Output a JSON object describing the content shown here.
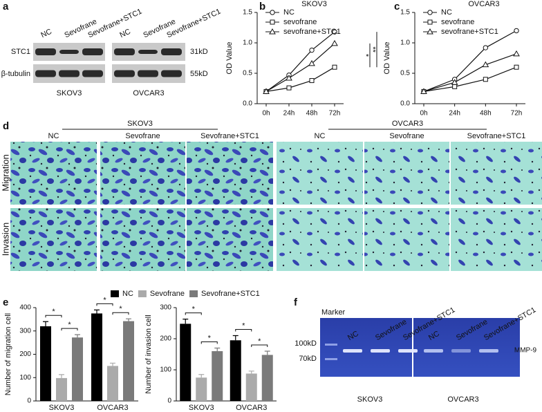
{
  "panel_labels": [
    "a",
    "b",
    "c",
    "d",
    "e",
    "f"
  ],
  "blot": {
    "lanes": [
      "NC",
      "Sevofrane",
      "Sevofrane+STC1"
    ],
    "rows": [
      "STC1",
      "β-tubulin"
    ],
    "sizes": [
      "31kD",
      "55kD"
    ],
    "cells": [
      "SKOV3",
      "OVCAR3"
    ]
  },
  "micrographs": {
    "groups": [
      "SKOV3",
      "OVCAR3"
    ],
    "columns": [
      "NC",
      "Sevofrane",
      "Sevofrane+STC1"
    ],
    "rows": [
      "Migration",
      "Invasion"
    ]
  },
  "gel": {
    "marker": "Marker",
    "lanes": [
      "NC",
      "Sevofrane",
      "Sevofrane+STC1"
    ],
    "sizes": [
      "100kD",
      "70kD"
    ],
    "band": "MMP-9",
    "cells": [
      "SKOV3",
      "OVCAR3"
    ]
  },
  "chart_data": [
    {
      "type": "line",
      "title": "SKOV3",
      "y_label": "OD Value",
      "categories": [
        "0h",
        "24h",
        "48h",
        "72h"
      ],
      "series": [
        {
          "name": "NC",
          "color": "#111111",
          "marker": "circle",
          "values": [
            0.2,
            0.47,
            0.88,
            1.18
          ]
        },
        {
          "name": "sevofrane",
          "color": "#111111",
          "marker": "square",
          "values": [
            0.2,
            0.26,
            0.38,
            0.6
          ]
        },
        {
          "name": "sevofrane+STC1",
          "color": "#111111",
          "marker": "triangle",
          "values": [
            0.2,
            0.42,
            0.66,
            0.99
          ]
        }
      ],
      "ylim": [
        0,
        1.5
      ],
      "yticks": [
        {
          "value": 0,
          "label": "0.0"
        },
        0.5,
        {
          "value": 1,
          "label": "1.0"
        },
        1.5
      ],
      "legend": "upper left",
      "annotations": [
        "*",
        "**"
      ]
    },
    {
      "type": "line",
      "title": "OVCAR3",
      "y_label": "OD Value",
      "categories": [
        "0h",
        "24h",
        "48h",
        "72h"
      ],
      "series": [
        {
          "name": "NC",
          "color": "#111111",
          "marker": "circle",
          "values": [
            0.2,
            0.4,
            0.92,
            1.2
          ]
        },
        {
          "name": "sevofrane",
          "color": "#111111",
          "marker": "square",
          "values": [
            0.2,
            0.28,
            0.4,
            0.6
          ]
        },
        {
          "name": "sevofrane+STC1",
          "color": "#111111",
          "marker": "triangle",
          "values": [
            0.2,
            0.35,
            0.64,
            0.82
          ]
        }
      ],
      "ylim": [
        0,
        1.5
      ],
      "yticks": [
        {
          "value": 0,
          "label": "0.0"
        },
        0.5,
        {
          "value": 1,
          "label": "1.0"
        },
        1.5
      ],
      "legend": "upper left",
      "annotations": [
        "*",
        "**"
      ]
    },
    {
      "type": "bar",
      "y_label": "Number of migration cell",
      "categories": [
        "SKOV3",
        "OVCAR3"
      ],
      "series": [
        {
          "name": "NC",
          "color": "#000000",
          "values": [
            320,
            375
          ],
          "errors": [
            20,
            15
          ]
        },
        {
          "name": "Sevofrane",
          "color": "#aaaaaa",
          "values": [
            98,
            150
          ],
          "errors": [
            15,
            12
          ]
        },
        {
          "name": "Sevofrane+STC1",
          "color": "#7a7a7a",
          "values": [
            272,
            342
          ],
          "errors": [
            12,
            10
          ]
        }
      ],
      "ylim": [
        0,
        400
      ],
      "yticks": [
        0,
        100,
        200,
        300,
        400
      ],
      "legend": "top",
      "annotations": [
        "*"
      ]
    },
    {
      "type": "bar",
      "y_label": "Number of invasion cell",
      "categories": [
        "SKOV3",
        "OVCAR3"
      ],
      "series": [
        {
          "name": "NC",
          "color": "#000000",
          "values": [
            248,
            195
          ],
          "errors": [
            15,
            15
          ]
        },
        {
          "name": "Sevofrane",
          "color": "#aaaaaa",
          "values": [
            75,
            88
          ],
          "errors": [
            10,
            8
          ]
        },
        {
          "name": "Sevofrane+STC1",
          "color": "#7a7a7a",
          "values": [
            160,
            148
          ],
          "errors": [
            10,
            12
          ]
        }
      ],
      "ylim": [
        0,
        300
      ],
      "yticks": [
        0,
        100,
        200,
        300
      ],
      "annotations": [
        "*"
      ]
    }
  ]
}
